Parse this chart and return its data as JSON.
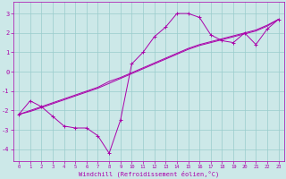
{
  "xlabel": "Windchill (Refroidissement éolien,°C)",
  "bg_color": "#cce8e8",
  "grid_color": "#99cccc",
  "line_color": "#aa00aa",
  "xlim": [
    -0.5,
    23.5
  ],
  "ylim": [
    -4.6,
    3.6
  ],
  "yticks": [
    -4,
    -3,
    -2,
    -1,
    0,
    1,
    2,
    3
  ],
  "xticks": [
    0,
    1,
    2,
    3,
    4,
    5,
    6,
    7,
    8,
    9,
    10,
    11,
    12,
    13,
    14,
    15,
    16,
    17,
    18,
    19,
    20,
    21,
    22,
    23
  ],
  "y_main": [
    -2.2,
    -1.5,
    -1.8,
    -2.3,
    -2.8,
    -2.9,
    -2.9,
    -3.3,
    -4.2,
    -2.5,
    0.4,
    1.0,
    1.8,
    2.3,
    3.0,
    3.0,
    2.8,
    1.9,
    1.6,
    1.5,
    2.0,
    1.4,
    2.2,
    2.7
  ],
  "y_trend1": [
    -2.2,
    -2.0,
    -1.8,
    -1.6,
    -1.4,
    -1.2,
    -1.0,
    -0.8,
    -0.5,
    -0.3,
    -0.05,
    0.2,
    0.45,
    0.7,
    0.95,
    1.2,
    1.4,
    1.55,
    1.7,
    1.85,
    2.0,
    2.15,
    2.4,
    2.7
  ],
  "y_trend2": [
    -2.2,
    -2.05,
    -1.85,
    -1.65,
    -1.45,
    -1.25,
    -1.05,
    -0.85,
    -0.6,
    -0.35,
    -0.1,
    0.15,
    0.4,
    0.65,
    0.9,
    1.15,
    1.35,
    1.5,
    1.65,
    1.8,
    1.95,
    2.1,
    2.35,
    2.7
  ]
}
